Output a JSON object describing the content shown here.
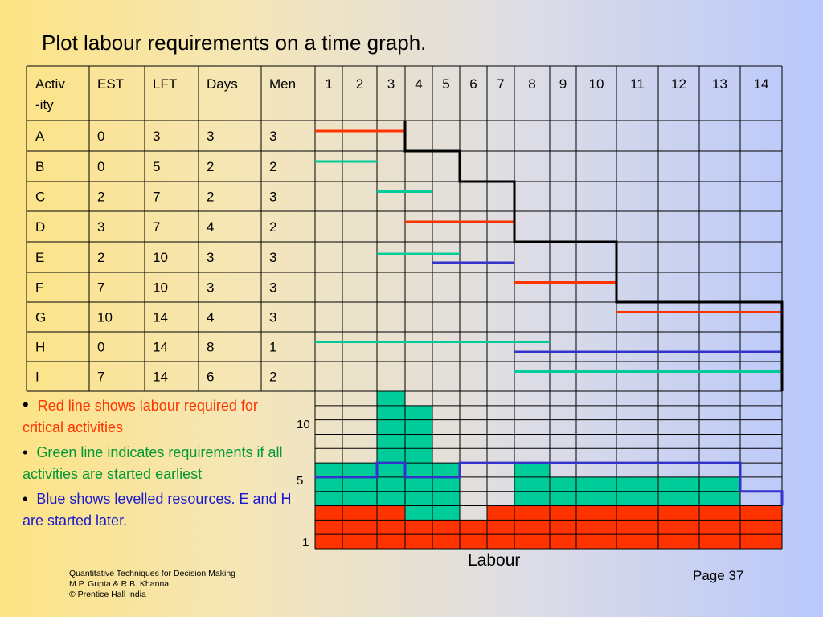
{
  "title": "Plot labour requirements on a time graph.",
  "table": {
    "headers": [
      "Activ\n-ity",
      "EST",
      "LFT",
      "Days",
      "Men"
    ],
    "header_line1": "Activ",
    "header_line2": "-ity",
    "periods": [
      "1",
      "2",
      "3",
      "4",
      "5",
      "6",
      "7",
      "8",
      "9",
      "10",
      "11",
      "12",
      "13",
      "14"
    ],
    "rows": [
      {
        "activity": "A",
        "est": "0",
        "lft": "3",
        "days": "3",
        "men": "3"
      },
      {
        "activity": "B",
        "est": "0",
        "lft": "5",
        "days": "2",
        "men": "2"
      },
      {
        "activity": "C",
        "est": "2",
        "lft": "7",
        "days": "2",
        "men": "3"
      },
      {
        "activity": "D",
        "est": "3",
        "lft": "7",
        "days": "4",
        "men": "2"
      },
      {
        "activity": "E",
        "est": "2",
        "lft": "10",
        "days": "3",
        "men": "3"
      },
      {
        "activity": "F",
        "est": "7",
        "lft": "10",
        "days": "3",
        "men": "3"
      },
      {
        "activity": "G",
        "est": "10",
        "lft": "14",
        "days": "4",
        "men": "3"
      },
      {
        "activity": "H",
        "est": "0",
        "lft": "14",
        "days": "8",
        "men": "1"
      },
      {
        "activity": "I",
        "est": "7",
        "lft": "14",
        "days": "6",
        "men": "2"
      }
    ]
  },
  "gantt_lines": [
    {
      "row": 0,
      "color": "red",
      "start": 0,
      "end": 3
    },
    {
      "row": 1,
      "color": "green",
      "start": 0,
      "end": 2
    },
    {
      "row": 2,
      "color": "green",
      "start": 2,
      "end": 4
    },
    {
      "row": 3,
      "color": "red",
      "start": 3,
      "end": 7
    },
    {
      "row": 4,
      "color": "green",
      "start": 2,
      "end": 5
    },
    {
      "row": 4,
      "color": "blue",
      "start": 4,
      "end": 7
    },
    {
      "row": 5,
      "color": "red",
      "start": 7,
      "end": 10
    },
    {
      "row": 6,
      "color": "red",
      "start": 10,
      "end": 14
    },
    {
      "row": 7,
      "color": "green",
      "start": 0,
      "end": 8
    },
    {
      "row": 7,
      "color": "blue",
      "start": 7,
      "end": 14
    },
    {
      "row": 8,
      "color": "green",
      "start": 7,
      "end": 14
    }
  ],
  "critical_path_steps": [
    {
      "row": 0,
      "end": 3
    },
    {
      "row": 1,
      "end": 5
    },
    {
      "row": 2,
      "end": 7
    },
    {
      "row": 4,
      "end": 10
    },
    {
      "row": 6,
      "end": 14
    }
  ],
  "colors": {
    "red": "#ff3300",
    "green": "#00cc99",
    "blue": "#3333cc",
    "black": "#000000"
  },
  "chart_data": {
    "type": "bar",
    "categories": [
      "1",
      "2",
      "3",
      "4",
      "5",
      "6",
      "7",
      "8",
      "9",
      "10",
      "11",
      "12",
      "13",
      "14"
    ],
    "series": [
      {
        "name": "Red line shows labour required for critical activities",
        "values": [
          3,
          3,
          3,
          2,
          2,
          2,
          3,
          3,
          3,
          3,
          3,
          3,
          3,
          3
        ]
      },
      {
        "name": "Green line indicates requirements if all activities are started earliest",
        "values": [
          6,
          6,
          11,
          10,
          6,
          0,
          0,
          6,
          5,
          5,
          5,
          5,
          5,
          0
        ]
      },
      {
        "name": "Blue shows levelled resources. E and H are started later.",
        "values": [
          5,
          5,
          6,
          5,
          5,
          6,
          6,
          6,
          6,
          6,
          6,
          6,
          6,
          4
        ]
      }
    ],
    "yticks": [
      "10",
      "5",
      "1"
    ],
    "xlabel": "Labour",
    "ylim": [
      0,
      11
    ]
  },
  "bullets": [
    {
      "text": "Red line shows labour required for critical activities",
      "color": "#ff3300"
    },
    {
      "text": "Green line indicates requirements if all activities are started earliest",
      "color": "#009933"
    },
    {
      "text": "Blue shows levelled resources. E and H are started later.",
      "color": "#1a1acc"
    }
  ],
  "footer": {
    "line1": "Quantitative Techniques for Decision Making",
    "line2": "M.P. Gupta & R.B. Khanna",
    "line3": "© Prentice Hall India"
  },
  "page": "Page 37",
  "xlabel": "Labour",
  "yticks": {
    "ten": "10",
    "five": "5",
    "one": "1"
  }
}
